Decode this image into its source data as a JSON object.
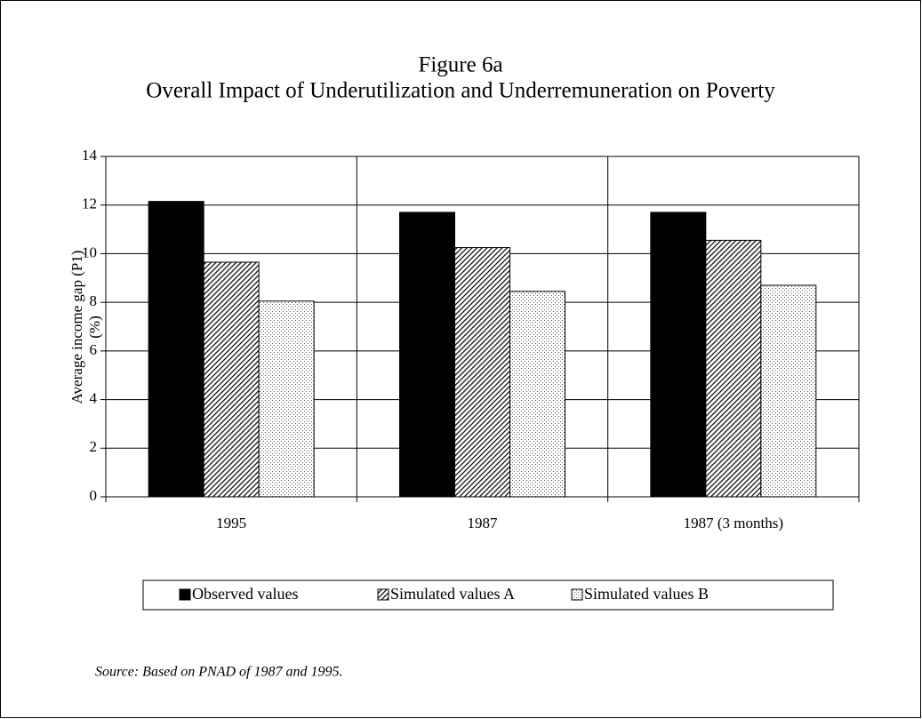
{
  "chart_data": {
    "type": "bar",
    "title": "Figure 6a",
    "subtitle": "Overall Impact of Underutilization and Underremuneration on Poverty",
    "y_label": [
      "Average  income gap (P1)",
      "(%)"
    ],
    "categories": [
      "1995",
      "1987",
      "1987 (3 months)"
    ],
    "series": [
      {
        "name": "Observed values",
        "color": "#000000",
        "pattern": "solid",
        "values": [
          12.15,
          11.7,
          11.7
        ]
      },
      {
        "name": "Simulated values A",
        "color": "#000000",
        "pattern": "hatch",
        "values": [
          9.65,
          10.25,
          10.55
        ]
      },
      {
        "name": "Simulated values B",
        "color": "#000000",
        "pattern": "dots",
        "values": [
          8.05,
          8.45,
          8.7
        ]
      }
    ],
    "ylim": [
      0,
      14
    ],
    "yticks": [
      0,
      2,
      4,
      6,
      8,
      10,
      12,
      14
    ],
    "grid": true,
    "legend": "bottom",
    "source": "Source: Based on PNAD of 1987 and 1995."
  }
}
